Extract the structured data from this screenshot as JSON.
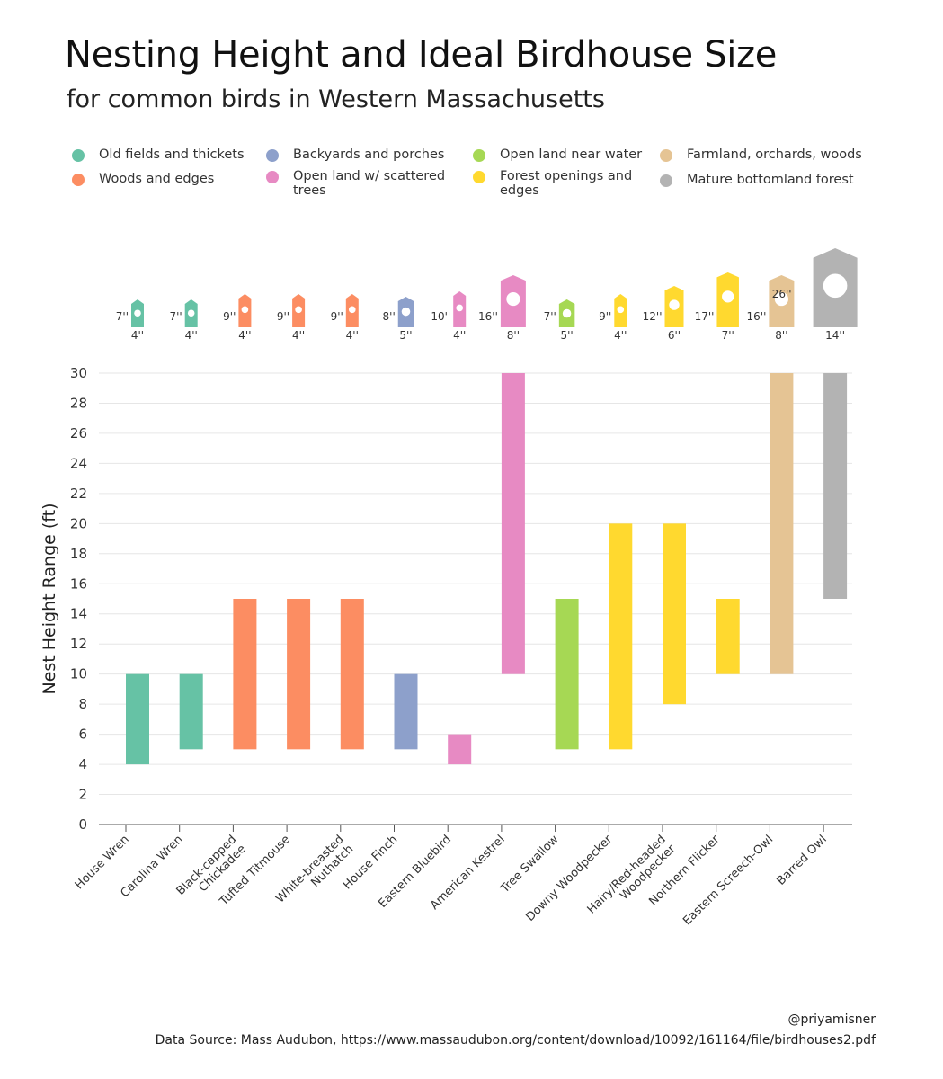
{
  "title": "Nesting Height and Ideal Birdhouse Size",
  "subtitle": "for common birds in Western Massachusetts",
  "legend": [
    {
      "label": "Old fields and thickets",
      "color": "#66c2a5"
    },
    {
      "label": "Woods and edges",
      "color": "#fc8d62"
    },
    {
      "label": "Backyards and porches",
      "color": "#8da0cb"
    },
    {
      "label": "Open land w/ scattered trees",
      "color": "#e78ac3"
    },
    {
      "label": "Open land near water",
      "color": "#a6d854"
    },
    {
      "label": "Forest openings and edges",
      "color": "#ffd92f"
    },
    {
      "label": "Farmland, orchards, woods",
      "color": "#e5c494"
    },
    {
      "label": "Mature bottomland forest",
      "color": "#b3b3b3"
    }
  ],
  "footer": {
    "handle": "@priyamisner",
    "source": "Data Source: Mass Audubon, https://www.massaudubon.org/content/download/10092/161164/file/birdhouses2.pdf"
  },
  "chart_data": {
    "type": "bar",
    "subtype": "floating-range",
    "ylabel": "Nest Height Range (ft)",
    "ylim": [
      0,
      30
    ],
    "yticks": [
      0,
      2,
      4,
      6,
      8,
      10,
      12,
      14,
      16,
      18,
      20,
      22,
      24,
      26,
      28,
      30
    ],
    "grid": true,
    "categories": [
      "House Wren",
      "Carolina Wren",
      "Black-capped Chickadee",
      "Tufted Titmouse",
      "White-breasted Nuthatch",
      "House Finch",
      "Eastern Bluebird",
      "American Kestrel",
      "Tree Swallow",
      "Downy Woodpecker",
      "Hairy/Red-headed Woodpecker",
      "Northern Flicker",
      "Eastern Screech-Owl",
      "Barred Owl"
    ],
    "category_labels": [
      [
        "House Wren"
      ],
      [
        "Carolina Wren"
      ],
      [
        "Black-capped",
        "Chickadee"
      ],
      [
        "Tufted Titmouse"
      ],
      [
        "White-breasted",
        "Nuthatch"
      ],
      [
        "House Finch"
      ],
      [
        "Eastern Bluebird"
      ],
      [
        "American Kestrel"
      ],
      [
        "Tree Swallow"
      ],
      [
        "Downy Woodpecker"
      ],
      [
        "Hairy/Red-headed",
        "Woodpecker"
      ],
      [
        "Northern Flicker"
      ],
      [
        "Eastern Screech-Owl"
      ],
      [
        "Barred Owl"
      ]
    ],
    "habitat": [
      "Old fields and thickets",
      "Old fields and thickets",
      "Woods and edges",
      "Woods and edges",
      "Woods and edges",
      "Backyards and porches",
      "Open land w/ scattered trees",
      "Open land w/ scattered trees",
      "Open land near water",
      "Forest openings and edges",
      "Forest openings and edges",
      "Forest openings and edges",
      "Farmland, orchards, woods",
      "Mature bottomland forest"
    ],
    "colors": [
      "#66c2a5",
      "#66c2a5",
      "#fc8d62",
      "#fc8d62",
      "#fc8d62",
      "#8da0cb",
      "#e78ac3",
      "#e78ac3",
      "#a6d854",
      "#ffd92f",
      "#ffd92f",
      "#ffd92f",
      "#e5c494",
      "#b3b3b3"
    ],
    "low": [
      4,
      5,
      5,
      5,
      5,
      5,
      4,
      10,
      5,
      5,
      8,
      10,
      10,
      15
    ],
    "high": [
      10,
      10,
      15,
      15,
      15,
      10,
      6,
      30,
      15,
      20,
      20,
      15,
      30,
      30
    ],
    "birdhouse_height_in": [
      7,
      7,
      9,
      9,
      9,
      8,
      10,
      16,
      7,
      9,
      12,
      17,
      16,
      26
    ],
    "birdhouse_width_in": [
      4,
      4,
      4,
      4,
      4,
      5,
      4,
      8,
      5,
      4,
      6,
      7,
      8,
      14
    ],
    "birdhouse_height_labels": [
      "7''",
      "7''",
      "9''",
      "9''",
      "9''",
      "8''",
      "10''",
      "16''",
      "7''",
      "9''",
      "12''",
      "17''",
      "16''",
      "26''"
    ],
    "birdhouse_width_labels": [
      "4''",
      "4''",
      "4''",
      "4''",
      "4''",
      "5''",
      "4''",
      "8''",
      "5''",
      "4''",
      "6''",
      "7''",
      "8''",
      "14''"
    ]
  }
}
